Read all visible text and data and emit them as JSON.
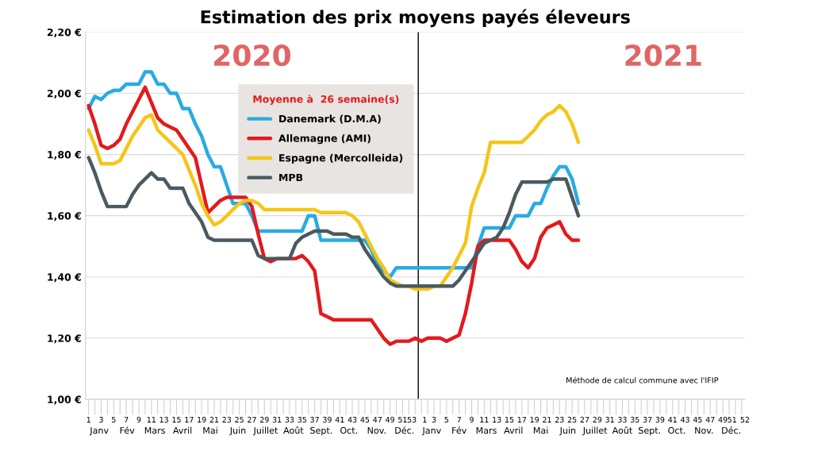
{
  "chart_data": {
    "type": "line",
    "title": "Estimation des prix moyens payés éleveurs",
    "legend_title": "Moyenne à  26 semaine(s)",
    "ylim": [
      1.0,
      2.2
    ],
    "yticks": [
      {
        "value": 1.0,
        "label": "1,00 €"
      },
      {
        "value": 1.2,
        "label": "1,20 €"
      },
      {
        "value": 1.4,
        "label": "1,40 €"
      },
      {
        "value": 1.6,
        "label": "1,60 €"
      },
      {
        "value": 1.8,
        "label": "1,80 €"
      },
      {
        "value": 2.0,
        "label": "2,00 €"
      },
      {
        "value": 2.2,
        "label": "2,20 €"
      }
    ],
    "categories": [
      "1",
      null,
      "3",
      null,
      "5",
      null,
      "7",
      null,
      "9",
      null,
      "11",
      null,
      "13",
      null,
      "15",
      null,
      "17",
      null,
      "19",
      null,
      "21",
      null,
      "23",
      null,
      "25",
      null,
      "27",
      null,
      "29",
      null,
      "31",
      null,
      "33",
      null,
      "35",
      null,
      "37",
      null,
      "39",
      null,
      "41",
      null,
      "43",
      null,
      "45",
      null,
      "47",
      null,
      "49",
      null,
      "51",
      null,
      "53",
      "1",
      null,
      "3",
      null,
      "5",
      null,
      "7",
      null,
      "9",
      null,
      "11",
      null,
      "13",
      null,
      "15",
      null,
      "17",
      null,
      "19",
      null,
      "21",
      null,
      "23",
      null,
      "25",
      null,
      "27",
      null,
      "29",
      null,
      "31",
      null,
      "33",
      null,
      "35",
      null,
      "37",
      null,
      "39",
      null,
      "41",
      null,
      "43",
      null,
      "45",
      null,
      "47",
      null,
      "49",
      null,
      "51",
      "52"
    ],
    "grid": "y",
    "legend": "top left",
    "marker": "none",
    "line_style": "solid",
    "ref_lines": [
      {
        "axis": "x",
        "value": "53",
        "color": "#000000"
      }
    ],
    "annotations": [
      "2020",
      "2021",
      "Méthode de calcul commune avec l'IFIP",
      "Janv",
      "Fév",
      "Mars",
      "Avril",
      "Mai",
      "Juin",
      "Juillet",
      "Août",
      "Sept.",
      "Oct.",
      "Nov.",
      "Déc.",
      "Janv",
      "Fév",
      "Mars",
      "Avril",
      "Mai",
      "Juin",
      "Juillet",
      "Août",
      "Sept.",
      "Oct.",
      "Nov.",
      "Déc."
    ],
    "series": [
      {
        "name": "Danemark (D.M.A)",
        "color": "#29abe2",
        "values": [
          1.95,
          1.99,
          1.98,
          2.0,
          2.01,
          2.01,
          2.03,
          2.03,
          2.03,
          2.07,
          2.07,
          2.03,
          2.03,
          2.0,
          2.0,
          1.95,
          1.95,
          1.9,
          1.86,
          1.8,
          1.76,
          1.76,
          1.7,
          1.64,
          1.64,
          1.64,
          1.6,
          1.55,
          1.55,
          1.55,
          1.55,
          1.55,
          1.55,
          1.55,
          1.55,
          1.6,
          1.6,
          1.52,
          1.52,
          1.52,
          1.52,
          1.52,
          1.52,
          1.52,
          1.52,
          1.49,
          1.44,
          1.42,
          1.4,
          1.43,
          1.43,
          1.43,
          1.43,
          1.43,
          1.43,
          1.43,
          1.43,
          1.43,
          1.43,
          1.43,
          1.43,
          1.43,
          1.5,
          1.56,
          1.56,
          1.56,
          1.56,
          1.56,
          1.6,
          1.6,
          1.6,
          1.64,
          1.64,
          1.69,
          1.73,
          1.76,
          1.76,
          1.72,
          1.64,
          null,
          null,
          null,
          null,
          null,
          null,
          null,
          null,
          null,
          null,
          null,
          null,
          null,
          null,
          null,
          null,
          null,
          null,
          null,
          null,
          null,
          null,
          null,
          null,
          null,
          null
        ]
      },
      {
        "name": "Allemagne (AMI)",
        "color": "#e31a1c",
        "values": [
          1.96,
          1.9,
          1.83,
          1.82,
          1.83,
          1.85,
          1.9,
          1.94,
          1.98,
          2.02,
          1.97,
          1.92,
          1.9,
          1.89,
          1.88,
          1.85,
          1.82,
          1.79,
          1.7,
          1.61,
          1.63,
          1.65,
          1.66,
          1.66,
          1.66,
          1.66,
          1.63,
          1.54,
          1.46,
          1.45,
          1.46,
          1.46,
          1.46,
          1.46,
          1.47,
          1.45,
          1.42,
          1.28,
          1.27,
          1.26,
          1.26,
          1.26,
          1.26,
          1.26,
          1.26,
          1.26,
          1.23,
          1.2,
          1.18,
          1.19,
          1.19,
          1.19,
          1.2,
          1.19,
          1.2,
          1.2,
          1.2,
          1.19,
          1.2,
          1.21,
          1.28,
          1.38,
          1.5,
          1.52,
          1.52,
          1.52,
          1.52,
          1.52,
          1.49,
          1.45,
          1.43,
          1.46,
          1.53,
          1.56,
          1.57,
          1.58,
          1.54,
          1.52,
          1.52,
          null,
          null,
          null,
          null,
          null,
          null,
          null,
          null,
          null,
          null,
          null,
          null,
          null,
          null,
          null,
          null,
          null,
          null,
          null,
          null,
          null,
          null,
          null,
          null,
          null,
          null
        ]
      },
      {
        "name": "Espagne (Mercolleida)",
        "color": "#f5c518",
        "values": [
          1.88,
          1.83,
          1.77,
          1.77,
          1.77,
          1.78,
          1.82,
          1.86,
          1.89,
          1.92,
          1.93,
          1.88,
          1.86,
          1.84,
          1.82,
          1.8,
          1.75,
          1.7,
          1.64,
          1.6,
          1.57,
          1.58,
          1.6,
          1.62,
          1.64,
          1.65,
          1.65,
          1.64,
          1.62,
          1.62,
          1.62,
          1.62,
          1.62,
          1.62,
          1.62,
          1.62,
          1.62,
          1.61,
          1.61,
          1.61,
          1.61,
          1.61,
          1.6,
          1.58,
          1.54,
          1.5,
          1.46,
          1.43,
          1.39,
          1.38,
          1.37,
          1.37,
          1.36,
          1.36,
          1.36,
          1.37,
          1.37,
          1.4,
          1.43,
          1.47,
          1.51,
          1.63,
          1.69,
          1.74,
          1.84,
          1.84,
          1.84,
          1.84,
          1.84,
          1.84,
          1.86,
          1.88,
          1.91,
          1.93,
          1.94,
          1.96,
          1.94,
          1.9,
          1.84,
          null,
          null,
          null,
          null,
          null,
          null,
          null,
          null,
          null,
          null,
          null,
          null,
          null,
          null,
          null,
          null,
          null,
          null,
          null,
          null,
          null,
          null,
          null,
          null,
          null,
          null
        ]
      },
      {
        "name": "MPB",
        "color": "#4a5a5f",
        "values": [
          1.79,
          1.74,
          1.68,
          1.63,
          1.63,
          1.63,
          1.63,
          1.67,
          1.7,
          1.72,
          1.74,
          1.72,
          1.72,
          1.69,
          1.69,
          1.69,
          1.64,
          1.61,
          1.58,
          1.53,
          1.52,
          1.52,
          1.52,
          1.52,
          1.52,
          1.52,
          1.52,
          1.47,
          1.46,
          1.46,
          1.46,
          1.46,
          1.46,
          1.51,
          1.53,
          1.54,
          1.55,
          1.55,
          1.55,
          1.54,
          1.54,
          1.54,
          1.53,
          1.53,
          1.49,
          1.46,
          1.43,
          1.4,
          1.38,
          1.37,
          1.37,
          1.37,
          1.37,
          1.37,
          1.37,
          1.37,
          1.37,
          1.37,
          1.37,
          1.39,
          1.42,
          1.45,
          1.48,
          1.51,
          1.52,
          1.53,
          1.56,
          1.61,
          1.67,
          1.71,
          1.71,
          1.71,
          1.71,
          1.71,
          1.72,
          1.72,
          1.72,
          1.66,
          1.6,
          null,
          null,
          null,
          null,
          null,
          null,
          null,
          null,
          null,
          null,
          null,
          null,
          null,
          null,
          null,
          null,
          null,
          null,
          null,
          null,
          null,
          null,
          null,
          null,
          null,
          null
        ]
      }
    ]
  }
}
